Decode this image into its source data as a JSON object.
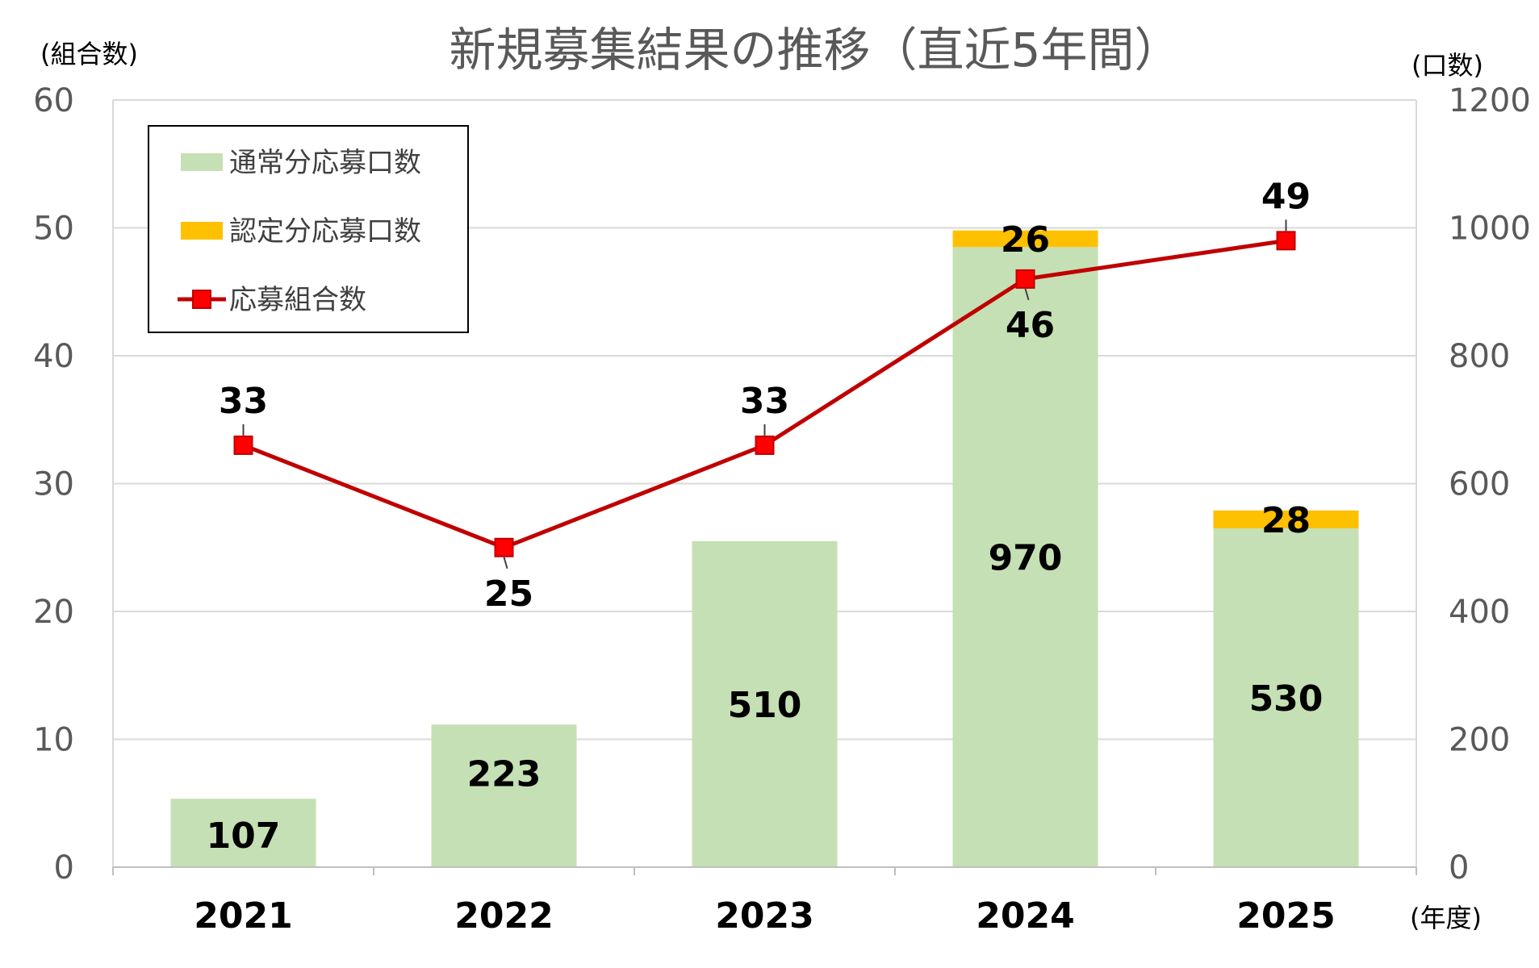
{
  "chart_data": {
    "type": "bar",
    "title": "新規募集結果の推移（直近5年間）",
    "left_axis_label": "(組合数)",
    "right_axis_label": "(口数)",
    "x_axis_label": "(年度)",
    "categories": [
      "2021",
      "2022",
      "2023",
      "2024",
      "2025"
    ],
    "left_ylim": [
      0,
      60
    ],
    "left_ticks": [
      0,
      10,
      20,
      30,
      40,
      50,
      60
    ],
    "right_ylim": [
      0,
      1200
    ],
    "right_ticks": [
      0,
      200,
      400,
      600,
      800,
      1000,
      1200
    ],
    "grid": true,
    "legend_position": "top-left",
    "series": [
      {
        "name": "通常分応募口数",
        "kind": "stacked-bar",
        "axis": "right",
        "color": "#c5e0b4",
        "values": [
          107,
          223,
          510,
          970,
          530
        ],
        "labels": [
          "107",
          "223",
          "510",
          "970",
          "530"
        ]
      },
      {
        "name": "認定分応募口数",
        "kind": "stacked-bar",
        "axis": "right",
        "color": "#ffc000",
        "values": [
          0,
          0,
          0,
          26,
          28
        ],
        "labels": [
          "",
          "",
          "",
          "26",
          "28"
        ]
      },
      {
        "name": "応募組合数",
        "kind": "line",
        "axis": "left",
        "color": "#c00000",
        "marker": "square",
        "marker_color": "#ff0000",
        "values": [
          33,
          25,
          33,
          46,
          49
        ],
        "labels": [
          "33",
          "25",
          "33",
          "46",
          "49"
        ]
      }
    ]
  }
}
